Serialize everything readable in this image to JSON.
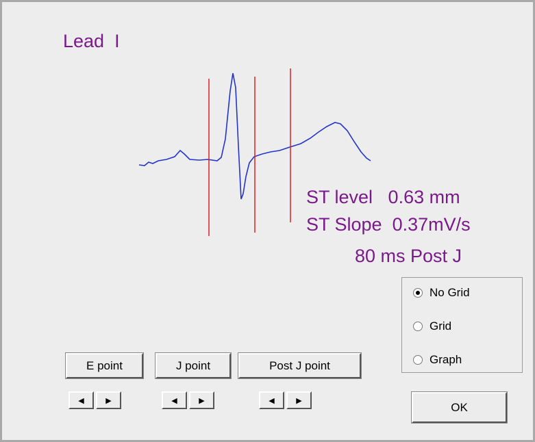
{
  "lead_title": "Lead  I",
  "measurements": [
    "ST level   0.63 mm",
    "ST Slope  0.37mV/s",
    "80 ms Post J"
  ],
  "point_buttons": [
    "E point",
    "J point",
    "Post J point"
  ],
  "grid_options": {
    "options": [
      "No Grid",
      "Grid",
      "Graph"
    ],
    "selected": 0
  },
  "ok_button": "OK"
}
